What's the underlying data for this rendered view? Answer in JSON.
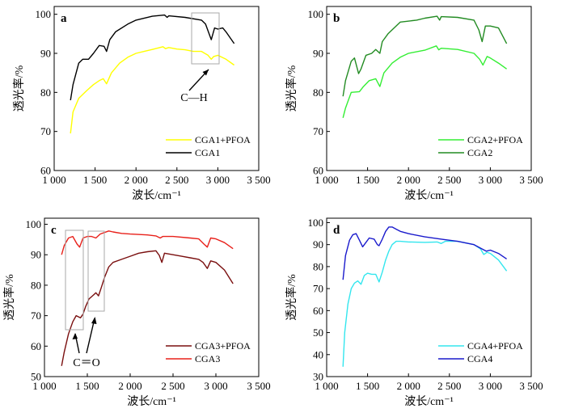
{
  "figure": {
    "description_lang": "zh",
    "panel_count": 4
  },
  "chart_data": [
    {
      "type": "line",
      "panel": "a",
      "xlabel": "波长/cm⁻¹",
      "ylabel": "透光率/%",
      "xlim": [
        1000,
        3500
      ],
      "ylim": [
        60,
        102
      ],
      "xticks": [
        1000,
        1500,
        2000,
        2500,
        3000,
        3500
      ],
      "xtick_labels": [
        "1 000",
        "1 500",
        "2 000",
        "2 500",
        "3 000",
        "3 500"
      ],
      "yticks": [
        60,
        70,
        80,
        90,
        100
      ],
      "ytick_labels": [
        "60",
        "70",
        "80",
        "90",
        "100"
      ],
      "legend": "bottom-right",
      "series": [
        {
          "name": "CGA1+PFOA",
          "color": "#ffff00",
          "points": [
            [
              1200,
              69.5
            ],
            [
              1230,
              75
            ],
            [
              1300,
              78.5
            ],
            [
              1400,
              80.5
            ],
            [
              1480,
              82
            ],
            [
              1550,
              83
            ],
            [
              1600,
              83.5
            ],
            [
              1640,
              82.2
            ],
            [
              1700,
              85
            ],
            [
              1800,
              87.5
            ],
            [
              1900,
              89
            ],
            [
              2000,
              90
            ],
            [
              2100,
              90.5
            ],
            [
              2200,
              91
            ],
            [
              2330,
              91.7
            ],
            [
              2360,
              91.2
            ],
            [
              2400,
              91.5
            ],
            [
              2500,
              91.1
            ],
            [
              2600,
              90.9
            ],
            [
              2700,
              90.5
            ],
            [
              2800,
              90.5
            ],
            [
              2880,
              89.5
            ],
            [
              2920,
              88.5
            ],
            [
              2950,
              89.2
            ],
            [
              3000,
              89.5
            ],
            [
              3100,
              88.5
            ],
            [
              3200,
              87
            ]
          ]
        },
        {
          "name": "CGA1",
          "color": "#000000",
          "points": [
            [
              1200,
              78
            ],
            [
              1230,
              82
            ],
            [
              1300,
              87.5
            ],
            [
              1350,
              88.5
            ],
            [
              1420,
              88.5
            ],
            [
              1480,
              90
            ],
            [
              1550,
              92
            ],
            [
              1610,
              91.8
            ],
            [
              1640,
              90.5
            ],
            [
              1680,
              93.5
            ],
            [
              1750,
              95.5
            ],
            [
              1900,
              97.5
            ],
            [
              2000,
              98.5
            ],
            [
              2200,
              99.5
            ],
            [
              2350,
              99.8
            ],
            [
              2380,
              99.2
            ],
            [
              2400,
              99.6
            ],
            [
              2600,
              99.2
            ],
            [
              2800,
              98.5
            ],
            [
              2850,
              97.5
            ],
            [
              2920,
              93.5
            ],
            [
              2960,
              96.5
            ],
            [
              3000,
              96.2
            ],
            [
              3060,
              96.5
            ],
            [
              3100,
              95.5
            ],
            [
              3200,
              92.5
            ]
          ]
        }
      ],
      "annotations": [
        {
          "text": "C—H",
          "kind": "box-arrow"
        }
      ]
    },
    {
      "type": "line",
      "panel": "b",
      "xlabel": "波长/cm⁻¹",
      "ylabel": "透光率/%",
      "xlim": [
        1000,
        3500
      ],
      "ylim": [
        60,
        102
      ],
      "xticks": [
        1000,
        1500,
        2000,
        2500,
        3000,
        3500
      ],
      "xtick_labels": [
        "1 000",
        "1 500",
        "2 000",
        "2 500",
        "3 000",
        "3 500"
      ],
      "yticks": [
        60,
        70,
        80,
        90,
        100
      ],
      "ytick_labels": [
        "60",
        "70",
        "80",
        "90",
        "100"
      ],
      "legend": "bottom-right",
      "series": [
        {
          "name": "CGA2+PFOA",
          "color": "#33ee33",
          "points": [
            [
              1200,
              73.5
            ],
            [
              1230,
              76
            ],
            [
              1300,
              80
            ],
            [
              1400,
              80.2
            ],
            [
              1450,
              81.5
            ],
            [
              1520,
              83
            ],
            [
              1600,
              83.5
            ],
            [
              1650,
              81.5
            ],
            [
              1700,
              85
            ],
            [
              1800,
              87.5
            ],
            [
              1900,
              89
            ],
            [
              2000,
              90
            ],
            [
              2200,
              90.8
            ],
            [
              2340,
              91.9
            ],
            [
              2370,
              90.9
            ],
            [
              2400,
              91.3
            ],
            [
              2600,
              91
            ],
            [
              2800,
              90
            ],
            [
              2870,
              88.5
            ],
            [
              2910,
              87
            ],
            [
              2960,
              89.2
            ],
            [
              3000,
              88.8
            ],
            [
              3100,
              87.5
            ],
            [
              3200,
              86
            ]
          ]
        },
        {
          "name": "CGA2",
          "color": "#228b22",
          "points": [
            [
              1200,
              79
            ],
            [
              1230,
              83
            ],
            [
              1300,
              88
            ],
            [
              1340,
              88.8
            ],
            [
              1390,
              84.8
            ],
            [
              1420,
              86
            ],
            [
              1480,
              89.5
            ],
            [
              1550,
              90
            ],
            [
              1600,
              91
            ],
            [
              1650,
              90
            ],
            [
              1680,
              93
            ],
            [
              1750,
              95
            ],
            [
              1900,
              98
            ],
            [
              2100,
              98.5
            ],
            [
              2200,
              99
            ],
            [
              2350,
              99.5
            ],
            [
              2380,
              98.5
            ],
            [
              2400,
              99.4
            ],
            [
              2600,
              99.2
            ],
            [
              2800,
              98.5
            ],
            [
              2860,
              96
            ],
            [
              2900,
              93
            ],
            [
              2940,
              97
            ],
            [
              3000,
              97
            ],
            [
              3100,
              96.5
            ],
            [
              3200,
              92.5
            ]
          ]
        }
      ]
    },
    {
      "type": "line",
      "panel": "c",
      "xlabel": "波长/cm⁻¹",
      "ylabel": "透光率/%",
      "xlim": [
        1000,
        3500
      ],
      "ylim": [
        50,
        102
      ],
      "xticks": [
        1000,
        1500,
        2000,
        2500,
        3000,
        3500
      ],
      "xtick_labels": [
        "1 000",
        "1 500",
        "2 000",
        "2 500",
        "3 000",
        "3 500"
      ],
      "yticks": [
        50,
        60,
        70,
        80,
        90,
        100
      ],
      "ytick_labels": [
        "50",
        "60",
        "70",
        "80",
        "90",
        "100"
      ],
      "legend": "bottom-right",
      "series": [
        {
          "name": "CGA3+PFOA",
          "color": "#7a0f0f",
          "points": [
            [
              1200,
              53.5
            ],
            [
              1230,
              58
            ],
            [
              1280,
              64
            ],
            [
              1330,
              68
            ],
            [
              1370,
              70
            ],
            [
              1420,
              69.3
            ],
            [
              1450,
              70.5
            ],
            [
              1480,
              73
            ],
            [
              1520,
              75.5
            ],
            [
              1560,
              76.5
            ],
            [
              1600,
              77.5
            ],
            [
              1630,
              76.5
            ],
            [
              1660,
              79
            ],
            [
              1700,
              82.5
            ],
            [
              1750,
              86
            ],
            [
              1800,
              87.5
            ],
            [
              1900,
              88.5
            ],
            [
              2000,
              89.5
            ],
            [
              2100,
              90.5
            ],
            [
              2200,
              91
            ],
            [
              2300,
              91.3
            ],
            [
              2340,
              89.8
            ],
            [
              2370,
              87.5
            ],
            [
              2400,
              90.5
            ],
            [
              2500,
              90
            ],
            [
              2600,
              89.5
            ],
            [
              2700,
              89
            ],
            [
              2800,
              88.5
            ],
            [
              2850,
              87.5
            ],
            [
              2900,
              85.5
            ],
            [
              2940,
              88
            ],
            [
              3000,
              87.5
            ],
            [
              3100,
              85
            ],
            [
              3200,
              80.5
            ]
          ]
        },
        {
          "name": "CGA3",
          "color": "#e8201a",
          "points": [
            [
              1200,
              90
            ],
            [
              1230,
              93
            ],
            [
              1280,
              95.5
            ],
            [
              1330,
              96
            ],
            [
              1380,
              93.5
            ],
            [
              1410,
              92.5
            ],
            [
              1450,
              95.5
            ],
            [
              1500,
              96
            ],
            [
              1550,
              96
            ],
            [
              1600,
              95.5
            ],
            [
              1650,
              96.8
            ],
            [
              1700,
              97.3
            ],
            [
              1750,
              97.8
            ],
            [
              1800,
              97.5
            ],
            [
              1900,
              97
            ],
            [
              2000,
              96.8
            ],
            [
              2200,
              96.5
            ],
            [
              2300,
              96.2
            ],
            [
              2350,
              95.5
            ],
            [
              2380,
              96
            ],
            [
              2500,
              96
            ],
            [
              2700,
              95.5
            ],
            [
              2800,
              95.2
            ],
            [
              2860,
              93.5
            ],
            [
              2900,
              92.5
            ],
            [
              2940,
              95.5
            ],
            [
              3000,
              95.2
            ],
            [
              3100,
              94
            ],
            [
              3200,
              92
            ]
          ]
        }
      ],
      "annotations": [
        {
          "text": "C＝O",
          "kind": "box-arrow"
        }
      ]
    },
    {
      "type": "line",
      "panel": "d",
      "xlabel": "波长/cm⁻¹",
      "ylabel": "透光率/%",
      "xlim": [
        1000,
        3500
      ],
      "ylim": [
        30,
        102
      ],
      "xticks": [
        1000,
        1500,
        2000,
        2500,
        3000,
        3500
      ],
      "xtick_labels": [
        "1 000",
        "1 500",
        "2 000",
        "2 500",
        "3 000",
        "3 500"
      ],
      "yticks": [
        30,
        40,
        50,
        60,
        70,
        80,
        90,
        100
      ],
      "ytick_labels": [
        "30",
        "40",
        "50",
        "60",
        "70",
        "80",
        "90",
        "100"
      ],
      "legend": "bottom-right",
      "series": [
        {
          "name": "CGA4+PFOA",
          "color": "#33e6ee",
          "points": [
            [
              1200,
              34.5
            ],
            [
              1220,
              50
            ],
            [
              1260,
              63
            ],
            [
              1300,
              70
            ],
            [
              1340,
              72.5
            ],
            [
              1380,
              73.5
            ],
            [
              1420,
              72
            ],
            [
              1460,
              76
            ],
            [
              1500,
              77
            ],
            [
              1550,
              76.5
            ],
            [
              1600,
              76.5
            ],
            [
              1640,
              73
            ],
            [
              1680,
              77.5
            ],
            [
              1720,
              83
            ],
            [
              1760,
              87
            ],
            [
              1800,
              90
            ],
            [
              1850,
              91.5
            ],
            [
              1900,
              91.5
            ],
            [
              2000,
              91.2
            ],
            [
              2200,
              91
            ],
            [
              2350,
              91.2
            ],
            [
              2400,
              90.5
            ],
            [
              2450,
              91.5
            ],
            [
              2600,
              91.5
            ],
            [
              2800,
              90
            ],
            [
              2880,
              88
            ],
            [
              2920,
              85.5
            ],
            [
              2960,
              86.5
            ],
            [
              3000,
              86
            ],
            [
              3100,
              83
            ],
            [
              3200,
              78
            ]
          ]
        },
        {
          "name": "CGA4",
          "color": "#1a1acc",
          "points": [
            [
              1200,
              74
            ],
            [
              1230,
              85
            ],
            [
              1280,
              92
            ],
            [
              1320,
              94.5
            ],
            [
              1360,
              95
            ],
            [
              1400,
              92
            ],
            [
              1440,
              89
            ],
            [
              1480,
              91
            ],
            [
              1520,
              93
            ],
            [
              1580,
              92.5
            ],
            [
              1620,
              90
            ],
            [
              1640,
              89.5
            ],
            [
              1680,
              92.5
            ],
            [
              1720,
              96
            ],
            [
              1760,
              98
            ],
            [
              1800,
              98
            ],
            [
              1850,
              97
            ],
            [
              1900,
              96
            ],
            [
              2000,
              95
            ],
            [
              2200,
              93.5
            ],
            [
              2400,
              92.5
            ],
            [
              2600,
              91.5
            ],
            [
              2800,
              90
            ],
            [
              2900,
              88
            ],
            [
              2950,
              87
            ],
            [
              3000,
              87.5
            ],
            [
              3100,
              86
            ],
            [
              3200,
              83.5
            ]
          ]
        }
      ]
    }
  ]
}
